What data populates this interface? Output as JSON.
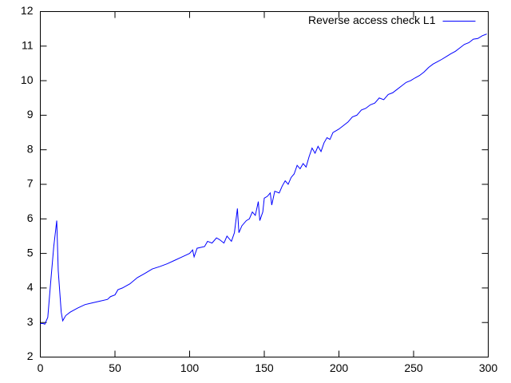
{
  "chart_data": {
    "type": "line",
    "series": [
      {
        "name": "Reverse access check L1",
        "color": "#0000ff",
        "x": [
          0,
          2,
          3,
          5,
          7,
          9,
          11,
          12,
          14,
          15,
          17,
          20,
          25,
          30,
          35,
          40,
          45,
          47,
          50,
          52,
          55,
          60,
          65,
          70,
          75,
          80,
          85,
          90,
          95,
          100,
          102,
          103,
          105,
          110,
          112,
          115,
          118,
          120,
          123,
          125,
          128,
          130,
          132,
          133,
          135,
          138,
          140,
          142,
          144,
          146,
          147,
          149,
          150,
          152,
          154,
          155,
          157,
          160,
          162,
          164,
          166,
          168,
          170,
          172,
          174,
          176,
          178,
          180,
          182,
          184,
          186,
          188,
          190,
          192,
          194,
          196,
          198,
          200,
          203,
          206,
          209,
          212,
          215,
          218,
          221,
          224,
          227,
          230,
          233,
          236,
          239,
          242,
          245,
          248,
          251,
          254,
          257,
          260,
          263,
          266,
          269,
          272,
          275,
          278,
          281,
          284,
          287,
          290,
          293,
          296,
          299
        ],
        "values": [
          2.97,
          2.97,
          2.95,
          3.15,
          4.2,
          5.2,
          5.95,
          4.5,
          3.3,
          3.05,
          3.2,
          3.3,
          3.42,
          3.52,
          3.57,
          3.62,
          3.67,
          3.75,
          3.8,
          3.95,
          4.0,
          4.12,
          4.3,
          4.42,
          4.55,
          4.62,
          4.7,
          4.8,
          4.9,
          5.0,
          5.1,
          4.9,
          5.15,
          5.2,
          5.35,
          5.3,
          5.45,
          5.4,
          5.3,
          5.5,
          5.35,
          5.6,
          6.3,
          5.6,
          5.8,
          5.95,
          6.0,
          6.2,
          6.1,
          6.5,
          5.95,
          6.2,
          6.6,
          6.65,
          6.75,
          6.4,
          6.8,
          6.75,
          6.95,
          7.1,
          7.0,
          7.2,
          7.3,
          7.55,
          7.45,
          7.6,
          7.5,
          7.8,
          8.05,
          7.9,
          8.1,
          7.95,
          8.2,
          8.35,
          8.3,
          8.5,
          8.55,
          8.6,
          8.7,
          8.8,
          8.95,
          9.0,
          9.15,
          9.2,
          9.3,
          9.35,
          9.5,
          9.45,
          9.6,
          9.65,
          9.75,
          9.85,
          9.95,
          10.0,
          10.08,
          10.15,
          10.25,
          10.38,
          10.48,
          10.55,
          10.62,
          10.7,
          10.78,
          10.85,
          10.95,
          11.05,
          11.1,
          11.2,
          11.22,
          11.3,
          11.35
        ]
      }
    ],
    "xlim": [
      0,
      300
    ],
    "xticks": [
      0,
      50,
      100,
      150,
      200,
      250,
      300
    ],
    "ylim": [
      2,
      12
    ],
    "yticks": [
      2,
      3,
      4,
      5,
      6,
      7,
      8,
      9,
      10,
      11,
      12
    ],
    "legend": "top-right"
  }
}
